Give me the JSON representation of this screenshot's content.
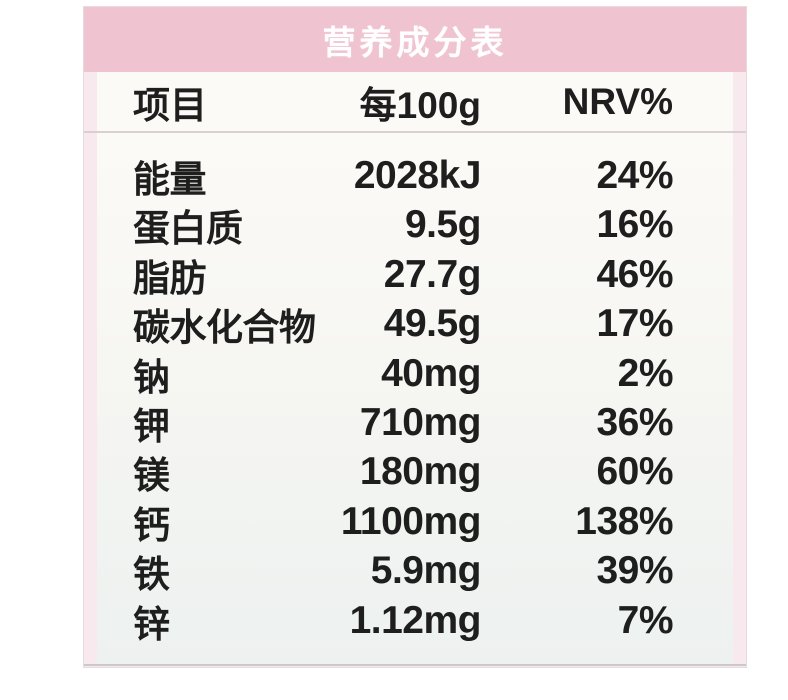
{
  "label": {
    "title": "营养成分表",
    "columns": [
      "项目",
      "每100g",
      "NRV%"
    ],
    "rows": [
      {
        "item": "能量",
        "per100g": "2028kJ",
        "nrv": "24%"
      },
      {
        "item": "蛋白质",
        "per100g": "9.5g",
        "nrv": "16%"
      },
      {
        "item": "脂肪",
        "per100g": "27.7g",
        "nrv": "46%"
      },
      {
        "item": "碳水化合物",
        "per100g": "49.5g",
        "nrv": "17%"
      },
      {
        "item": "钠",
        "per100g": "40mg",
        "nrv": "2%"
      },
      {
        "item": "钾",
        "per100g": "710mg",
        "nrv": "36%"
      },
      {
        "item": "镁",
        "per100g": "180mg",
        "nrv": "60%"
      },
      {
        "item": "钙",
        "per100g": "1100mg",
        "nrv": "138%"
      },
      {
        "item": "铁",
        "per100g": "5.9mg",
        "nrv": "39%"
      },
      {
        "item": "锌",
        "per100g": "1.12mg",
        "nrv": "7%"
      }
    ],
    "colors": {
      "header_band": "#f0c3d1",
      "band_title_text": "#ffffff",
      "side_strip": "#f7e9ed",
      "separator_line": "#d8d0d2",
      "bottom_line": "#c9c9c9",
      "text": "#1e1e1e"
    }
  }
}
